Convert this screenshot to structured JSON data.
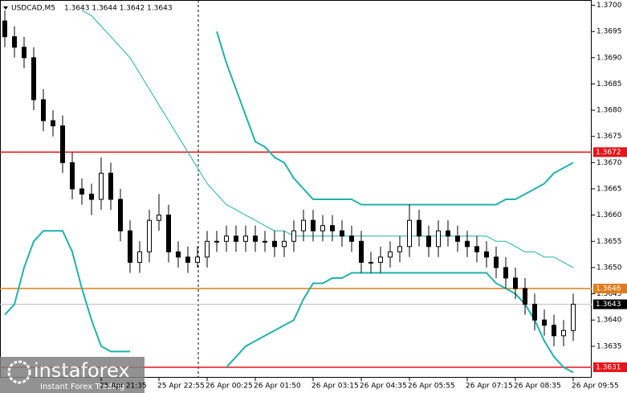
{
  "chart_data": {
    "type": "candlestick",
    "header": {
      "symbol": "USDCAD,M5",
      "values": "1.3643 1.3644 1.3642 1.3643"
    },
    "watermark": {
      "brand": "instaforex",
      "tagline": "Instant Forex Trading"
    },
    "open": [
      1.3697,
      1.3694,
      1.3692,
      1.369,
      1.3682,
      1.3678,
      1.3677,
      1.367,
      1.3665,
      1.3664,
      1.3663,
      1.3668,
      1.3663,
      1.3657,
      1.3651,
      1.3653,
      1.3659,
      1.366,
      1.3653,
      1.3652,
      1.3651,
      1.3652,
      1.3655,
      1.3655,
      1.3656,
      1.3655,
      1.3656,
      1.3655,
      1.3655,
      1.3654,
      1.3655,
      1.3657,
      1.3659,
      1.3657,
      1.3658,
      1.3657,
      1.3656,
      1.3655,
      1.3651,
      1.3651,
      1.3652,
      1.3653,
      1.3654,
      1.3659,
      1.3656,
      1.3654,
      1.3657,
      1.3656,
      1.3655,
      1.3654,
      1.3653,
      1.3652,
      1.365,
      1.3648,
      1.3646,
      1.3643,
      1.364,
      1.3639,
      1.3637,
      1.3638
    ],
    "high": [
      1.3699,
      1.3696,
      1.3694,
      1.3692,
      1.3684,
      1.368,
      1.3679,
      1.3672,
      1.3667,
      1.3666,
      1.3671,
      1.367,
      1.3665,
      1.3659,
      1.3655,
      1.3661,
      1.3664,
      1.3662,
      1.3655,
      1.3654,
      1.3654,
      1.3657,
      1.3657,
      1.3658,
      1.3658,
      1.3658,
      1.3658,
      1.3657,
      1.3657,
      1.3657,
      1.3659,
      1.3661,
      1.3661,
      1.366,
      1.366,
      1.3659,
      1.3658,
      1.3657,
      1.3653,
      1.3654,
      1.3655,
      1.3656,
      1.3662,
      1.3661,
      1.3658,
      1.3659,
      1.3659,
      1.3658,
      1.3657,
      1.3656,
      1.3655,
      1.3654,
      1.3652,
      1.365,
      1.3648,
      1.3645,
      1.3642,
      1.3641,
      1.364,
      1.3645
    ],
    "low": [
      1.3692,
      1.369,
      1.3688,
      1.368,
      1.3676,
      1.3675,
      1.3668,
      1.3663,
      1.3662,
      1.366,
      1.3661,
      1.3661,
      1.3655,
      1.3649,
      1.3649,
      1.3651,
      1.3657,
      1.3651,
      1.365,
      1.3649,
      1.365,
      1.365,
      1.3653,
      1.3653,
      1.3653,
      1.3653,
      1.3653,
      1.3653,
      1.3652,
      1.3652,
      1.3653,
      1.3655,
      1.3655,
      1.3655,
      1.3655,
      1.3654,
      1.3653,
      1.3649,
      1.3649,
      1.3649,
      1.365,
      1.3651,
      1.3652,
      1.3654,
      1.3652,
      1.3652,
      1.3654,
      1.3653,
      1.3652,
      1.3651,
      1.365,
      1.3648,
      1.3646,
      1.3644,
      1.3641,
      1.3638,
      1.3637,
      1.3635,
      1.3635,
      1.3636
    ],
    "close": [
      1.3694,
      1.3692,
      1.369,
      1.3682,
      1.3678,
      1.3677,
      1.367,
      1.3665,
      1.3664,
      1.3663,
      1.3668,
      1.3663,
      1.3657,
      1.3651,
      1.3653,
      1.3659,
      1.366,
      1.3653,
      1.3652,
      1.3651,
      1.3652,
      1.3655,
      1.3655,
      1.3656,
      1.3655,
      1.3656,
      1.3655,
      1.3655,
      1.3654,
      1.3655,
      1.3657,
      1.3659,
      1.3657,
      1.3658,
      1.3657,
      1.3656,
      1.3655,
      1.3651,
      1.3651,
      1.3652,
      1.3653,
      1.3654,
      1.3659,
      1.3656,
      1.3654,
      1.3657,
      1.3656,
      1.3655,
      1.3654,
      1.3653,
      1.3652,
      1.365,
      1.3648,
      1.3646,
      1.3643,
      1.364,
      1.3639,
      1.3637,
      1.3638,
      1.3643
    ],
    "candle_color": "#000000",
    "series": [
      {
        "color": "#20b2aa",
        "width": 2,
        "values": [
          null,
          null,
          null,
          null,
          null,
          null,
          null,
          null,
          null,
          null,
          null,
          null,
          null,
          null,
          null,
          null,
          null,
          null,
          null,
          null,
          null,
          null,
          1.3695,
          1.3689,
          1.3684,
          1.3679,
          1.3674,
          1.3673,
          1.3671,
          1.367,
          1.3667,
          1.3665,
          1.3663,
          1.3663,
          1.3663,
          1.3663,
          1.3663,
          1.3662,
          1.3662,
          1.3662,
          1.3662,
          1.3662,
          1.3662,
          1.3662,
          1.3662,
          1.3662,
          1.3662,
          1.3662,
          1.3662,
          1.3662,
          1.3662,
          1.3662,
          1.3663,
          1.3663,
          1.3664,
          1.3665,
          1.3666,
          1.3668,
          1.3669,
          1.367
        ]
      },
      {
        "color": "#20b2aa",
        "width": 1,
        "values": [
          null,
          null,
          null,
          null,
          null,
          null,
          null,
          null,
          1.3699,
          1.3698,
          1.3696,
          1.3694,
          1.3692,
          1.369,
          1.3687,
          1.3684,
          1.3681,
          1.3678,
          1.3675,
          1.3672,
          1.3669,
          1.3666,
          1.3664,
          1.3662,
          1.3661,
          1.366,
          1.3659,
          1.3658,
          1.3657,
          1.3657,
          1.3656,
          1.3656,
          1.3656,
          1.3656,
          1.3656,
          1.3656,
          1.3656,
          1.3656,
          1.3656,
          1.3656,
          1.3656,
          1.3656,
          1.3656,
          1.3656,
          1.3656,
          1.3656,
          1.3656,
          1.3656,
          1.3656,
          1.3656,
          1.3656,
          1.3655,
          1.3655,
          1.3654,
          1.3653,
          1.3653,
          1.3652,
          1.3652,
          1.3651,
          1.365
        ]
      },
      {
        "color": "#20b2aa",
        "width": 2,
        "values": [
          1.3641,
          1.3643,
          1.365,
          1.3655,
          1.3657,
          1.3657,
          1.3657,
          1.3653,
          1.3646,
          1.364,
          1.3635,
          1.3634,
          1.3634,
          1.3634,
          null,
          null,
          null,
          null,
          null,
          null,
          null,
          null,
          null,
          1.3631,
          1.3633,
          1.3635,
          1.3636,
          1.3637,
          1.3638,
          1.3639,
          1.364,
          1.3644,
          1.3647,
          1.3647,
          1.3648,
          1.3648,
          1.3649,
          1.3649,
          1.3649,
          1.3649,
          1.3649,
          1.3649,
          1.3649,
          1.3649,
          1.3649,
          1.3649,
          1.3649,
          1.3649,
          1.3649,
          1.3649,
          1.3649,
          1.3647,
          1.3646,
          1.3645,
          1.3643,
          1.364,
          1.3636,
          1.3633,
          1.3631,
          1.363
        ]
      }
    ],
    "levels": [
      {
        "value": 1.3672,
        "color": "#e8141b"
      },
      {
        "value": 1.3646,
        "color": "#e07b1a"
      },
      {
        "value": 1.3631,
        "color": "#e8141b"
      }
    ],
    "last_price": 1.3643,
    "ylim": [
      1.3629,
      1.3701
    ],
    "yticks": [
      {
        "value": 1.37,
        "label": "1.3700"
      },
      1.3695,
      {
        "value": 1.369,
        "label": "1.3690"
      },
      1.3685,
      {
        "value": 1.368,
        "label": "1.3680"
      },
      1.3675,
      {
        "value": 1.367,
        "label": "1.3670"
      },
      1.3665,
      {
        "value": 1.366,
        "label": "1.3660"
      },
      1.3655,
      {
        "value": 1.365,
        "label": "1.3650"
      },
      1.3645,
      {
        "value": 1.364,
        "label": "1.3640"
      },
      1.3635
    ],
    "xticks": [
      {
        "value": 10,
        "label": "25 Apr 21:35"
      },
      {
        "value": 16,
        "label": "25 Apr 22:55"
      },
      {
        "value": 21,
        "label": "26 Apr 00:25"
      },
      {
        "value": 26,
        "label": "26 Apr 01:50"
      },
      {
        "value": 32,
        "label": "26 Apr 03:15"
      },
      {
        "value": 37,
        "label": "26 Apr 04:35"
      },
      {
        "value": 42,
        "label": "26 Apr 05:55"
      },
      {
        "value": 48,
        "label": "26 Apr 07:15"
      },
      {
        "value": 53,
        "label": "26 Apr 08:35"
      },
      {
        "value": 59,
        "label": "26 Apr 09:55"
      }
    ]
  }
}
